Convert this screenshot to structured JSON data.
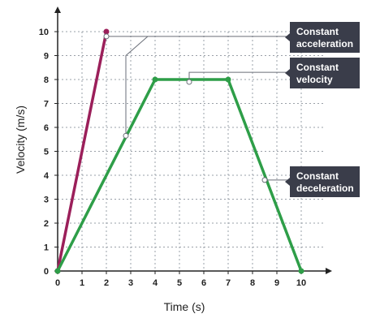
{
  "chart_data": {
    "type": "line",
    "xlabel": "Time (s)",
    "ylabel": "Velocity (m/s)",
    "xlim": [
      0,
      10
    ],
    "ylim": [
      0,
      10
    ],
    "x_ticks": [
      "0",
      "1",
      "2",
      "3",
      "4",
      "5",
      "6",
      "7",
      "8",
      "9",
      "10"
    ],
    "y_ticks": [
      "0",
      "1",
      "2",
      "3",
      "4",
      "5",
      "6",
      "7",
      "8",
      "9",
      "10"
    ],
    "grid": true,
    "series": [
      {
        "color": "#9b1f5a",
        "points": [
          [
            0,
            0
          ],
          [
            2,
            10
          ]
        ]
      },
      {
        "color": "#2e9e48",
        "points": [
          [
            0,
            0
          ],
          [
            4,
            8
          ],
          [
            7,
            8
          ],
          [
            10,
            0
          ]
        ]
      }
    ],
    "annotations": [
      {
        "lines": [
          "Constant",
          "acceleration"
        ]
      },
      {
        "lines": [
          "Constant",
          "velocity"
        ]
      },
      {
        "lines": [
          "Constant",
          "deceleration"
        ]
      }
    ],
    "annotation_color": "#3a3d4a"
  }
}
